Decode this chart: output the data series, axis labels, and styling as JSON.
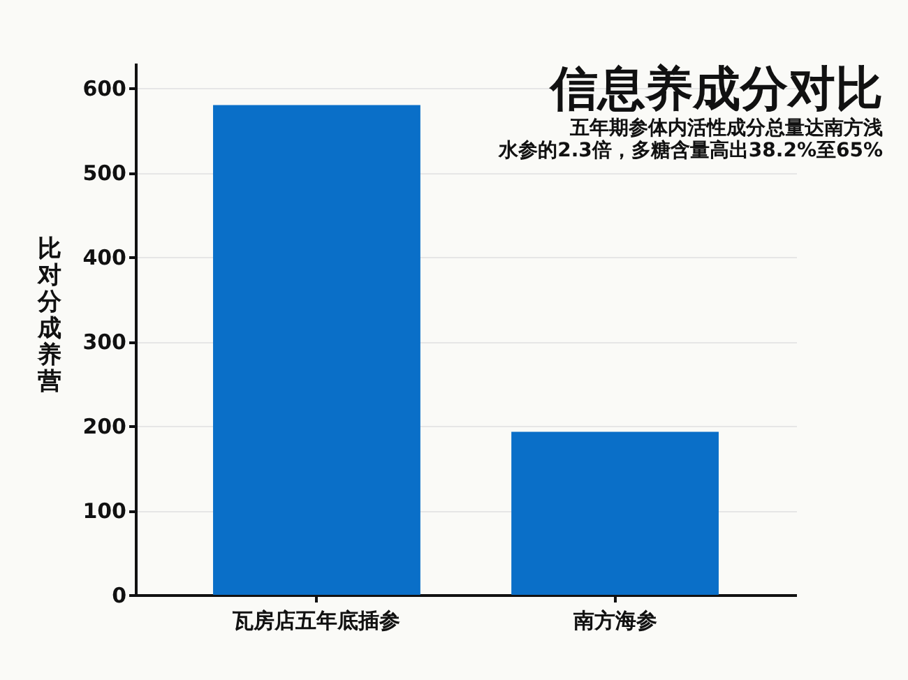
{
  "chart_data": {
    "type": "bar",
    "title": "信息养成分对比",
    "subtitle": "五年期参体内活性成分总量达南方浅水参的2.3倍，多糖含量高出38.2%至65%",
    "ylabel": "比对分成养营",
    "categories": [
      "瓦房店五年底插参",
      "南方海参"
    ],
    "values": [
      580,
      193
    ],
    "color": "#0a6fc8",
    "ylim": [
      0,
      630
    ],
    "yticks": [
      0,
      100,
      200,
      300,
      400,
      500,
      600
    ],
    "grid": "y"
  }
}
